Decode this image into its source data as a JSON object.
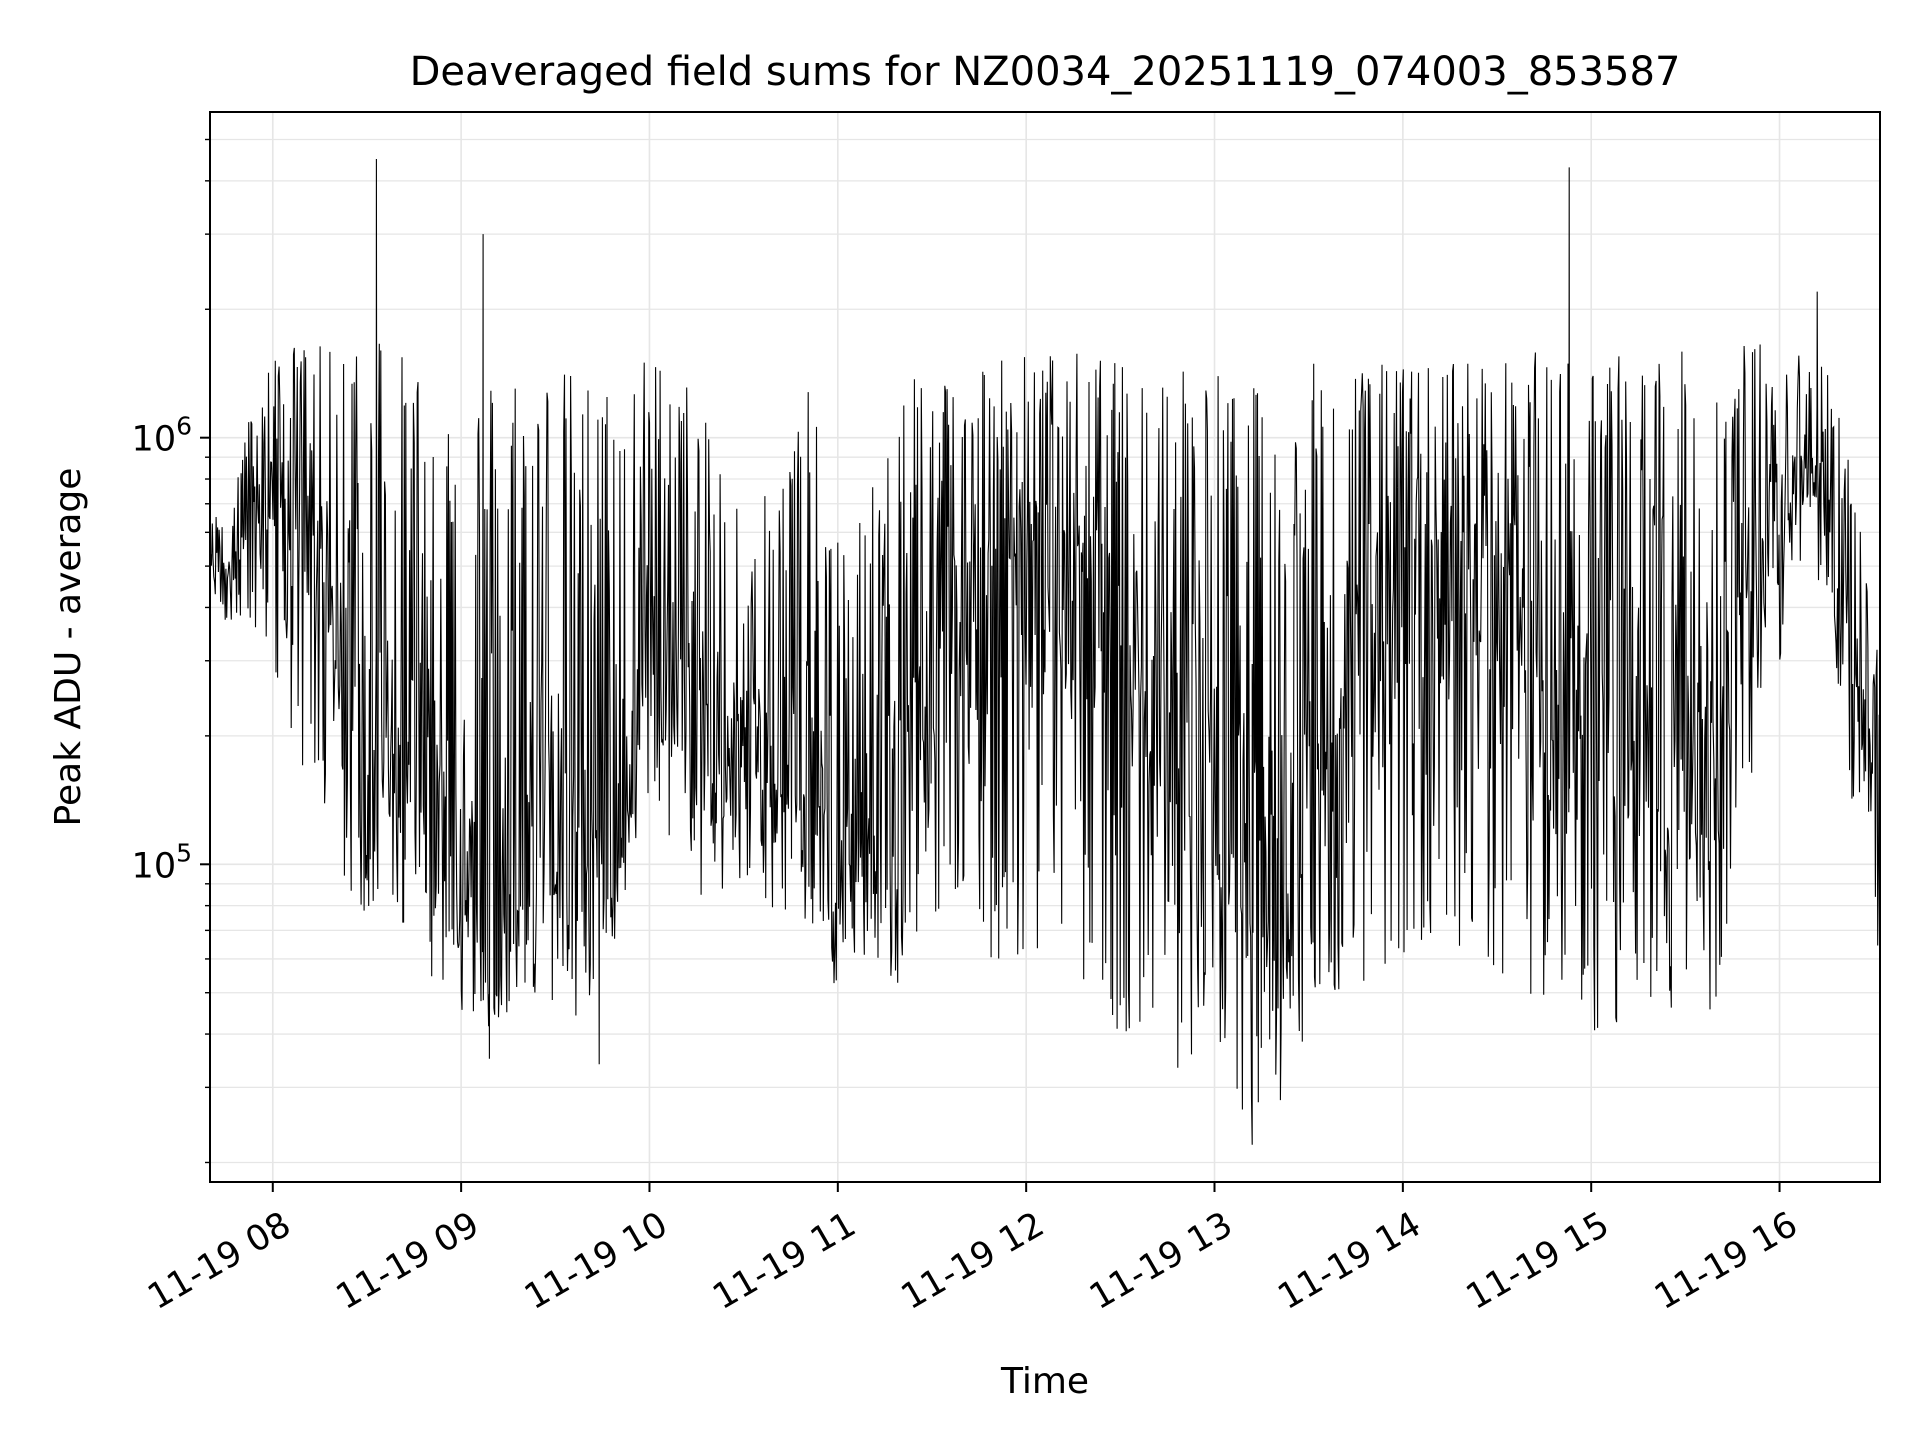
{
  "chart_data": {
    "type": "line",
    "title": "Deaveraged field sums for NZ0034_20251119_074003_853587",
    "xlabel": "Time",
    "ylabel": "Peak ADU - average",
    "yscale": "log",
    "grid": true,
    "legend": "none",
    "line_color": "#000000",
    "grid_color": "#e6e6e6",
    "x_range": [
      "2025-11-19 07:40",
      "2025-11-19 16:32"
    ],
    "ylim": [
      18000,
      5800000
    ],
    "x_ticks": [
      {
        "time": "2025-11-19 08:00",
        "label": "11-19 08"
      },
      {
        "time": "2025-11-19 09:00",
        "label": "11-19 09"
      },
      {
        "time": "2025-11-19 10:00",
        "label": "11-19 10"
      },
      {
        "time": "2025-11-19 11:00",
        "label": "11-19 11"
      },
      {
        "time": "2025-11-19 12:00",
        "label": "11-19 12"
      },
      {
        "time": "2025-11-19 13:00",
        "label": "11-19 13"
      },
      {
        "time": "2025-11-19 14:00",
        "label": "11-19 14"
      },
      {
        "time": "2025-11-19 15:00",
        "label": "11-19 15"
      },
      {
        "time": "2025-11-19 16:00",
        "label": "11-19 16"
      }
    ],
    "y_ticks": [
      {
        "value": 100000,
        "base": "10",
        "exp": "5"
      },
      {
        "value": 1000000,
        "base": "10",
        "exp": "6"
      }
    ],
    "series": [
      {
        "x": [
          "2025-11-19 07:40",
          "2025-11-19 07:50",
          "2025-11-19 08:00",
          "2025-11-19 08:10",
          "2025-11-19 08:20",
          "2025-11-19 08:30",
          "2025-11-19 08:40",
          "2025-11-19 08:50",
          "2025-11-19 09:00",
          "2025-11-19 09:10",
          "2025-11-19 09:20",
          "2025-11-19 09:30",
          "2025-11-19 09:40",
          "2025-11-19 09:50",
          "2025-11-19 10:00",
          "2025-11-19 10:10",
          "2025-11-19 10:20",
          "2025-11-19 10:30",
          "2025-11-19 10:40",
          "2025-11-19 10:50",
          "2025-11-19 11:00",
          "2025-11-19 11:10",
          "2025-11-19 11:20",
          "2025-11-19 11:30",
          "2025-11-19 11:40",
          "2025-11-19 11:50",
          "2025-11-19 12:00",
          "2025-11-19 12:10",
          "2025-11-19 12:20",
          "2025-11-19 12:30",
          "2025-11-19 12:40",
          "2025-11-19 12:50",
          "2025-11-19 13:00",
          "2025-11-19 13:10",
          "2025-11-19 13:20",
          "2025-11-19 13:30",
          "2025-11-19 13:40",
          "2025-11-19 13:50",
          "2025-11-19 14:00",
          "2025-11-19 14:10",
          "2025-11-19 14:20",
          "2025-11-19 14:30",
          "2025-11-19 14:40",
          "2025-11-19 14:50",
          "2025-11-19 15:00",
          "2025-11-19 15:10",
          "2025-11-19 15:20",
          "2025-11-19 15:30",
          "2025-11-19 15:40",
          "2025-11-19 15:50",
          "2025-11-19 16:00",
          "2025-11-19 16:10",
          "2025-11-19 16:20",
          "2025-11-19 16:30"
        ],
        "median": [
          480000,
          560000,
          700000,
          600000,
          300000,
          180000,
          220000,
          150000,
          100000,
          80000,
          90000,
          150000,
          120000,
          100000,
          350000,
          250000,
          180000,
          200000,
          170000,
          150000,
          80000,
          130000,
          140000,
          260000,
          350000,
          400000,
          380000,
          450000,
          420000,
          350000,
          280000,
          220000,
          180000,
          120000,
          100000,
          140000,
          250000,
          300000,
          350000,
          380000,
          400000,
          450000,
          250000,
          200000,
          300000,
          250000,
          200000,
          150000,
          150000,
          400000,
          600000,
          900000,
          450000,
          150000
        ],
        "low": [
          350000,
          380000,
          300000,
          150000,
          90000,
          75000,
          70000,
          55000,
          45000,
          40000,
          45000,
          45000,
          40000,
          90000,
          130000,
          80000,
          80000,
          90000,
          75000,
          70000,
          50000,
          60000,
          50000,
          80000,
          60000,
          60000,
          60000,
          60000,
          50000,
          40000,
          35000,
          32000,
          30000,
          25000,
          30000,
          40000,
          50000,
          50000,
          55000,
          60000,
          65000,
          55000,
          50000,
          45000,
          40000,
          40000,
          40000,
          45000,
          38000,
          140000,
          300000,
          600000,
          200000,
          60000
        ],
        "high": [
          620000,
          1000000,
          1600000,
          1700000,
          1600000,
          2500000,
          1600000,
          1500000,
          1400000,
          1500000,
          1600000,
          1500000,
          1400000,
          1400000,
          1600000,
          1500000,
          1000000,
          900000,
          800000,
          1400000,
          600000,
          700000,
          1800000,
          1400000,
          1600000,
          1600000,
          1600000,
          1600000,
          1600000,
          1500000,
          1500000,
          1600000,
          1500000,
          1300000,
          1400000,
          1500000,
          1500000,
          1500000,
          1500000,
          1500000,
          1600000,
          1500000,
          1600000,
          1600000,
          1600000,
          1600000,
          1600000,
          1600000,
          1600000,
          1700000,
          1700000,
          1600000,
          1400000,
          350000
        ],
        "notable_peaks": [
          {
            "x": "2025-11-19 08:33",
            "y": 4500000
          },
          {
            "x": "2025-11-19 09:07",
            "y": 3000000
          },
          {
            "x": "2025-11-19 14:53",
            "y": 4300000
          },
          {
            "x": "2025-11-19 16:12",
            "y": 2200000
          }
        ],
        "notable_dips": [
          {
            "x": "2025-11-19 09:09",
            "y": 35000
          },
          {
            "x": "2025-11-19 13:12",
            "y": 22000
          },
          {
            "x": "2025-11-19 13:21",
            "y": 28000
          },
          {
            "x": "2025-11-19 09:44",
            "y": 34000
          }
        ]
      }
    ]
  }
}
